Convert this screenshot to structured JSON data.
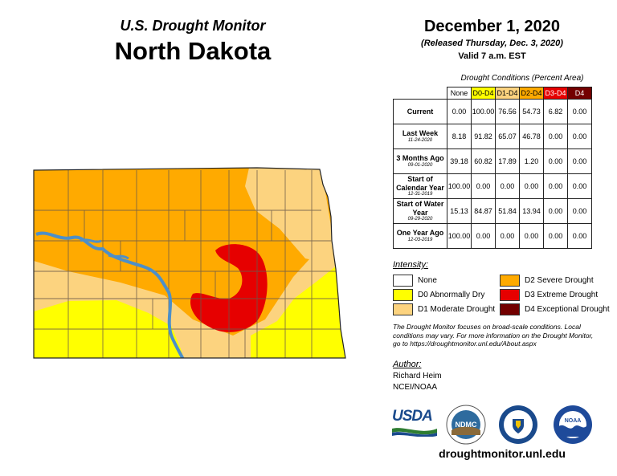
{
  "header": {
    "subtitle": "U.S. Drought Monitor",
    "state": "North Dakota",
    "date": "December 1, 2020",
    "released": "(Released Thursday, Dec. 3, 2020)",
    "valid": "Valid 7 a.m. EST"
  },
  "table": {
    "caption": "Drought Conditions (Percent Area)",
    "columns": [
      "None",
      "D0-D4",
      "D1-D4",
      "D2-D4",
      "D3-D4",
      "D4"
    ],
    "column_colors": [
      "#ffffff",
      "#ffff00",
      "#fcd37f",
      "#ffaa00",
      "#e60000",
      "#730000"
    ],
    "rows": [
      {
        "label": "Current",
        "date": "",
        "values": [
          "0.00",
          "100.00",
          "76.56",
          "54.73",
          "6.82",
          "0.00"
        ]
      },
      {
        "label": "Last Week",
        "date": "11-24-2020",
        "values": [
          "8.18",
          "91.82",
          "65.07",
          "46.78",
          "0.00",
          "0.00"
        ]
      },
      {
        "label": "3 Months Ago",
        "date": "09-01-2020",
        "values": [
          "39.18",
          "60.82",
          "17.89",
          "1.20",
          "0.00",
          "0.00"
        ]
      },
      {
        "label": "Start of Calendar Year",
        "date": "12-31-2019",
        "values": [
          "100.00",
          "0.00",
          "0.00",
          "0.00",
          "0.00",
          "0.00"
        ]
      },
      {
        "label": "Start of Water Year",
        "date": "09-29-2020",
        "values": [
          "15.13",
          "84.87",
          "51.84",
          "13.94",
          "0.00",
          "0.00"
        ]
      },
      {
        "label": "One Year Ago",
        "date": "12-03-2019",
        "values": [
          "100.00",
          "0.00",
          "0.00",
          "0.00",
          "0.00",
          "0.00"
        ]
      }
    ]
  },
  "legend": {
    "title": "Intensity:",
    "items": [
      {
        "label": "None",
        "color": "#ffffff"
      },
      {
        "label": "D0 Abnormally Dry",
        "color": "#ffff00"
      },
      {
        "label": "D1 Moderate Drought",
        "color": "#fcd37f"
      },
      {
        "label": "D2 Severe Drought",
        "color": "#ffaa00"
      },
      {
        "label": "D3 Extreme Drought",
        "color": "#e60000"
      },
      {
        "label": "D4 Exceptional Drought",
        "color": "#730000"
      }
    ]
  },
  "note": "The Drought Monitor focuses on broad-scale conditions. Local conditions may vary. For more information on the Drought Monitor, go to https://droughtmonitor.unl.edu/About.aspx",
  "author": {
    "label": "Author:",
    "name": "Richard Heim",
    "org": "NCEI/NOAA"
  },
  "logos": {
    "usda": "USDA",
    "ndmc": "NDMC",
    "noaa": "NOAA"
  },
  "url": "droughtmonitor.unl.edu",
  "map": {
    "colors": {
      "d0": "#ffff00",
      "d1": "#fcd37f",
      "d2": "#ffaa00",
      "d3": "#e60000",
      "water": "#4d8fc8",
      "border": "#6b5a4a"
    }
  }
}
